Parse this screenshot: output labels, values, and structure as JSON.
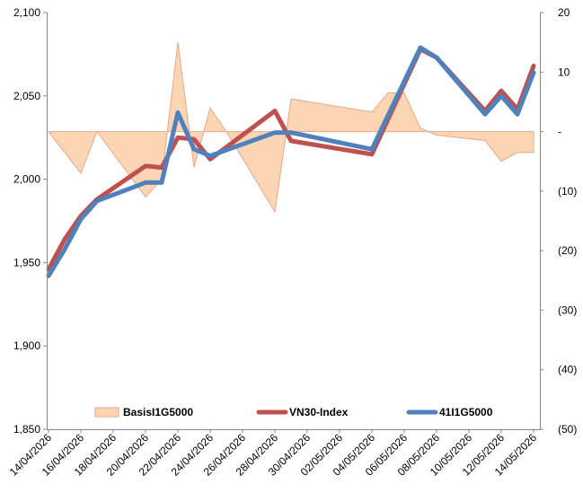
{
  "chart_data": {
    "type": "line",
    "title": "",
    "x": [
      "14/04/2026",
      "15/04/2026",
      "16/04/2026",
      "17/04/2026",
      "20/04/2026",
      "21/04/2026",
      "22/04/2026",
      "23/04/2026",
      "24/04/2026",
      "28/04/2026",
      "29/04/2026",
      "04/05/2026",
      "07/05/2026",
      "08/05/2026",
      "11/05/2026",
      "12/05/2026",
      "13/05/2026",
      "14/05/2026"
    ],
    "x_tick_labels": [
      "14/04/2026",
      "16/04/2026",
      "18/04/2026",
      "20/04/2026",
      "22/04/2026",
      "24/04/2026",
      "26/04/2026",
      "28/04/2026",
      "30/04/2026",
      "02/05/2026",
      "04/05/2026",
      "06/05/2026",
      "08/05/2026",
      "10/05/2026",
      "12/05/2026",
      "14/05/2026"
    ],
    "y_left": {
      "ticks": [
        "1,850",
        "1,900",
        "1,950",
        "2,000",
        "2,050",
        "2,100"
      ],
      "range": [
        1850,
        2100
      ]
    },
    "y_right": {
      "ticks": [
        "(50)",
        "(40)",
        "(30)",
        "(20)",
        "(10)",
        "-",
        "10",
        "20"
      ],
      "range": [
        -50,
        20
      ]
    },
    "series": [
      {
        "name": "BasisI1G5000",
        "axis": "right",
        "style": "area",
        "color": "#FCD5B5",
        "stroke": "#E6A98A",
        "points": [
          [
            "14/04/2026",
            0
          ],
          [
            "16/04/2026",
            -7
          ],
          [
            "17/04/2026",
            0
          ],
          [
            "20/04/2026",
            -11
          ],
          [
            "21/04/2026",
            -8
          ],
          [
            "21/04/2026",
            -8
          ],
          [
            "22/04/2026",
            15
          ],
          [
            "22/04/2026",
            15
          ],
          [
            "23/04/2026",
            -6
          ],
          [
            "24/04/2026",
            4
          ],
          [
            "25/04/2026",
            0
          ],
          [
            "28/04/2026",
            -13.5
          ],
          [
            "29/04/2026",
            5.5
          ],
          [
            "04/05/2026",
            3.3
          ],
          [
            "05/05/2026",
            6.5
          ],
          [
            "06/05/2026",
            6.5
          ],
          [
            "07/05/2026",
            0.6
          ],
          [
            "08/05/2026",
            -0.6
          ],
          [
            "11/05/2026",
            -1.5
          ],
          [
            "12/05/2026",
            -5
          ],
          [
            "13/05/2026",
            -3.5
          ],
          [
            "14/05/2026",
            -3.5
          ]
        ]
      },
      {
        "name": "VN30-Index",
        "axis": "left",
        "style": "line",
        "color": "#C0504D",
        "values": [
          1946,
          1964,
          1978,
          1988,
          2008,
          2007,
          2025,
          2024,
          2012,
          2041,
          2023,
          2015,
          2078,
          2073,
          2041,
          2053,
          2042,
          2068
        ]
      },
      {
        "name": "41I1G5000",
        "axis": "left",
        "style": "line",
        "color": "#4F81BD",
        "values": [
          1942,
          1958,
          1976,
          1987,
          1998,
          1998,
          2040,
          2018,
          2014,
          2028,
          2028,
          2018,
          2079,
          2073,
          2039,
          2050,
          2039,
          2064
        ]
      }
    ],
    "legend": [
      "BasisI1G5000",
      "VN30-Index",
      "41I1G5000"
    ],
    "legend_position": "bottom-inside",
    "grid": false
  }
}
